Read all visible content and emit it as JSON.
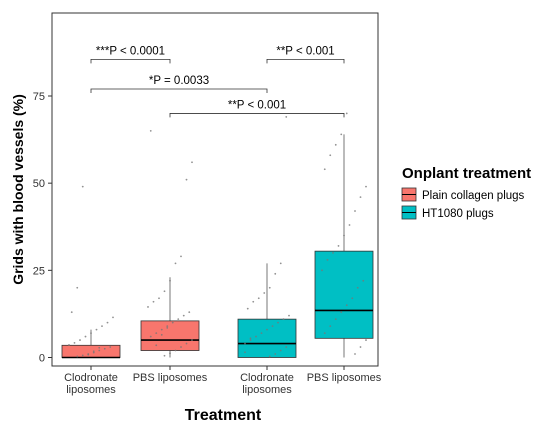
{
  "chart_data": {
    "type": "box",
    "xlabel": "Treatment",
    "ylabel": "Grids with blood vessels (%)",
    "ylim": [
      0,
      75
    ],
    "yticks": [
      0,
      25,
      50,
      75
    ],
    "categories": [
      "Clodronate\nliposomes",
      "PBS liposomes",
      "Clodronate\nliposomes",
      "PBS liposomes"
    ],
    "legend": {
      "title": "Onplant treatment",
      "position": "right",
      "entries": [
        {
          "label": "Plain collagen plugs",
          "color": "#F8766D"
        },
        {
          "label": "HT1080 plugs",
          "color": "#00BFC4"
        }
      ]
    },
    "boxes": [
      {
        "category": "Clodronate\nliposomes",
        "group": "Plain collagen plugs",
        "color": "#F8766D",
        "min": 0,
        "q1": 0,
        "median": 0,
        "q3": 3.5,
        "max": 8,
        "points": [
          0.3,
          0.6,
          1.0,
          1.4,
          2.0,
          2.5,
          3.0,
          3.6,
          4.2,
          5.0,
          6.0,
          7.0,
          8.0,
          9.0,
          10.0,
          11.5,
          13.0,
          20.0,
          49.0,
          0.8,
          1.8,
          2.8
        ]
      },
      {
        "category": "PBS liposomes",
        "group": "Plain collagen plugs",
        "color": "#F8766D",
        "min": 0,
        "q1": 2,
        "median": 5,
        "q3": 10.5,
        "max": 23,
        "points": [
          0.5,
          1.2,
          2.0,
          3.0,
          4.0,
          5.0,
          6.0,
          7.0,
          8.0,
          9.0,
          10.0,
          11.0,
          12.0,
          13.0,
          14.5,
          16.0,
          17.0,
          19.0,
          22.0,
          27.0,
          29.0,
          51.0,
          56.0,
          65.0,
          3.5,
          6.5,
          8.5
        ]
      },
      {
        "category": "Clodronate\nliposomes",
        "group": "HT1080 plugs",
        "color": "#00BFC4",
        "min": 0,
        "q1": 0,
        "median": 4,
        "q3": 11,
        "max": 27,
        "points": [
          0.3,
          1.0,
          2.0,
          3.0,
          4.0,
          5.0,
          6.0,
          7.0,
          8.0,
          9.0,
          10.0,
          11.0,
          12.0,
          14.0,
          16.0,
          17.0,
          18.5,
          20.0,
          24.0,
          27.0,
          69.0,
          1.5,
          5.5
        ]
      },
      {
        "category": "PBS liposomes",
        "group": "HT1080 plugs",
        "color": "#00BFC4",
        "min": 0,
        "q1": 5.5,
        "median": 13.5,
        "q3": 30.5,
        "max": 64,
        "points": [
          1.0,
          3.0,
          5.0,
          7.0,
          9.0,
          11.0,
          13.0,
          15.0,
          17.0,
          20.0,
          22.0,
          25.0,
          28.0,
          30.0,
          32.0,
          35.0,
          38.0,
          42.0,
          46.0,
          49.0,
          54.0,
          58.0,
          61.0,
          64.0,
          70.0
        ]
      }
    ],
    "annotations": [
      {
        "text": "***P < 0.0001",
        "from": 0,
        "to": 1,
        "y": 85.5
      },
      {
        "text": "**P < 0.001",
        "from": 2,
        "to": 3,
        "y": 85.5
      },
      {
        "text": "*P = 0.0033",
        "from": 0,
        "to": 2,
        "y": 77
      },
      {
        "text": "**P < 0.001",
        "from": 1,
        "to": 3,
        "y": 70
      }
    ]
  }
}
